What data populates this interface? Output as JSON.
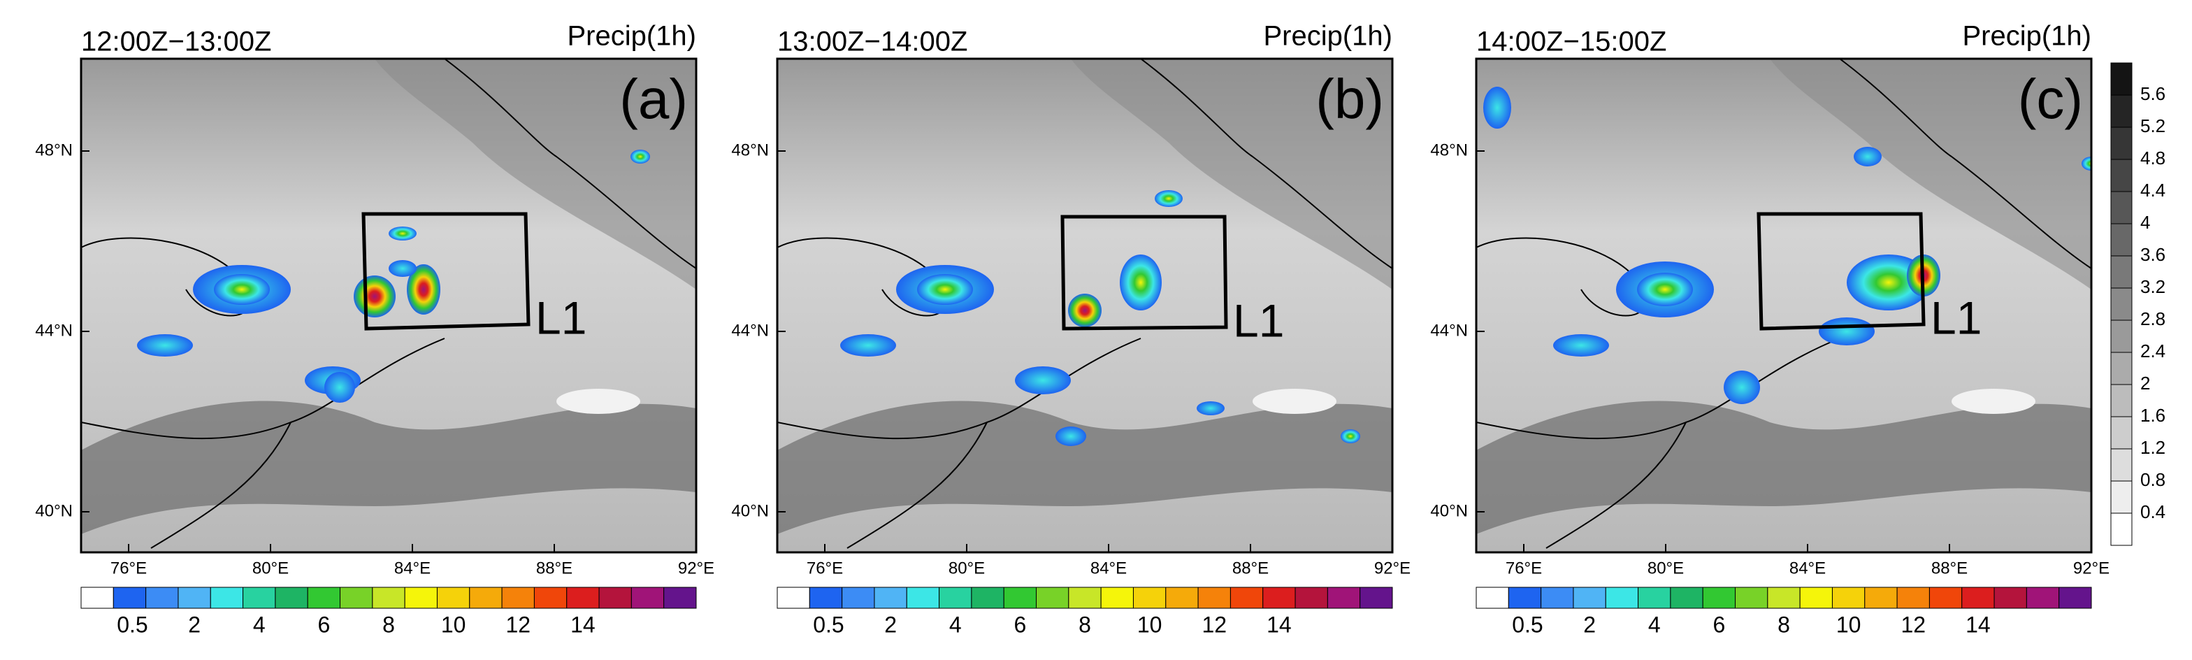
{
  "panels": [
    {
      "time": "12:00Z−13:00Z",
      "variable": "Precip(1h)",
      "label": "(a)",
      "box_label": "L1"
    },
    {
      "time": "13:00Z−14:00Z",
      "variable": "Precip(1h)",
      "label": "(b)",
      "box_label": "L1"
    },
    {
      "time": "14:00Z−15:00Z",
      "variable": "Precip(1h)",
      "label": "(c)",
      "box_label": "L1"
    }
  ],
  "lat_ticks": [
    "48°N",
    "44°N",
    "40°N"
  ],
  "lon_ticks": [
    "76°E",
    "80°E",
    "84°E",
    "88°E",
    "92°E"
  ],
  "precip_colorbar": {
    "labels": [
      0.5,
      2,
      4,
      6,
      8,
      10,
      12,
      14
    ],
    "colors": [
      "#ffffff",
      "#1e64f0",
      "#3c8cf5",
      "#50b4f5",
      "#3ce6e6",
      "#28d2a0",
      "#1eb464",
      "#32c832",
      "#78d228",
      "#c8e628",
      "#f5f50a",
      "#f5d20a",
      "#f5aa0a",
      "#f5820a",
      "#f0460a",
      "#dc1e1e",
      "#b4143c",
      "#a01478",
      "#64148c"
    ]
  },
  "terrain_colorbar": {
    "labels": [
      5.6,
      5.2,
      4.8,
      4.4,
      4,
      3.6,
      3.2,
      2.8,
      2.4,
      2,
      1.6,
      1.2,
      0.8,
      0.4
    ]
  }
}
